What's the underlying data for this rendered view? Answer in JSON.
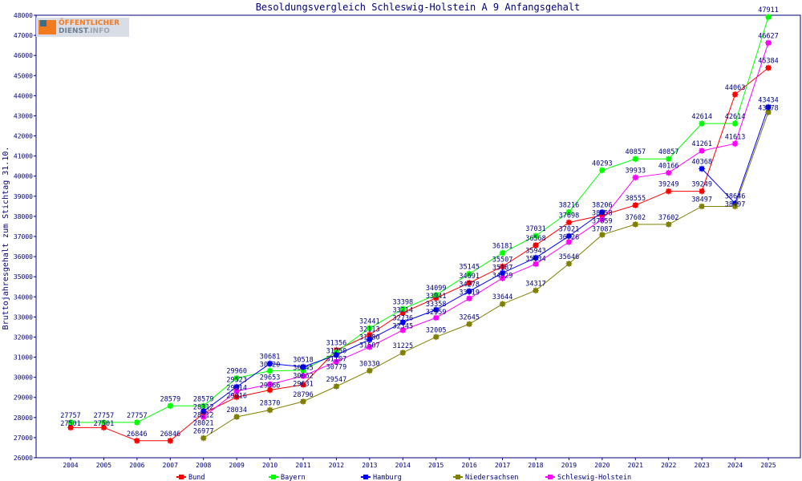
{
  "chart_data": {
    "type": "line",
    "title": "Besoldungsvergleich Schleswig-Holstein A 9 Anfangsgehalt",
    "ylabel": "Bruttojahresgehalt zum Stichtag 31.10.",
    "xlabel": "",
    "ylim": [
      26000,
      48000
    ],
    "ytick_step": 1000,
    "x": [
      2004,
      2005,
      2006,
      2007,
      2008,
      2009,
      2010,
      2011,
      2012,
      2013,
      2014,
      2015,
      2016,
      2017,
      2018,
      2019,
      2020,
      2021,
      2022,
      2023,
      2024,
      2025
    ],
    "grid": false,
    "legend_position": "bottom",
    "series": [
      {
        "name": "Bund",
        "color": "#ff0000",
        "values": [
          27501,
          27501,
          26846,
          26846,
          28212,
          29016,
          29366,
          29631,
          31356,
          32113,
          33214,
          33941,
          34691,
          35507,
          36568,
          37698,
          38058,
          38555,
          39249,
          39249,
          44063,
          45384
        ]
      },
      {
        "name": "Bayern",
        "color": "#00ff00",
        "values": [
          27757,
          27757,
          27757,
          28579,
          28579,
          29960,
          30320,
          30345,
          31250,
          32441,
          33398,
          34099,
          35145,
          36181,
          37031,
          38216,
          40293,
          40857,
          40857,
          42614,
          42614,
          47911
        ]
      },
      {
        "name": "Hamburg",
        "color": "#0000ff",
        "values": [
          null,
          null,
          null,
          null,
          28312,
          29523,
          30681,
          30518,
          31107,
          31880,
          32736,
          33358,
          34278,
          35187,
          35943,
          37021,
          38206,
          null,
          null,
          40368,
          38646,
          43434
        ]
      },
      {
        "name": "Niedersachsen",
        "color": "#808000",
        "values": [
          null,
          null,
          null,
          null,
          26977,
          28034,
          28370,
          28796,
          29547,
          30330,
          31225,
          32005,
          32645,
          33644,
          34317,
          35646,
          37087,
          37602,
          37602,
          38497,
          38497,
          43178
        ]
      },
      {
        "name": "Schleswig-Holstein",
        "color": "#ff00ff",
        "values": [
          null,
          null,
          null,
          null,
          28021,
          29314,
          29653,
          30062,
          30779,
          31507,
          32345,
          32959,
          33919,
          34929,
          35634,
          36726,
          37859,
          39933,
          40166,
          41261,
          41613,
          46627
        ]
      }
    ]
  },
  "logo": {
    "line1": "ÖFFENTLICHER",
    "line2a": "DIENST",
    "line2b": ".INFO"
  },
  "colors": {
    "text": "#000080",
    "axis": "#000080"
  }
}
